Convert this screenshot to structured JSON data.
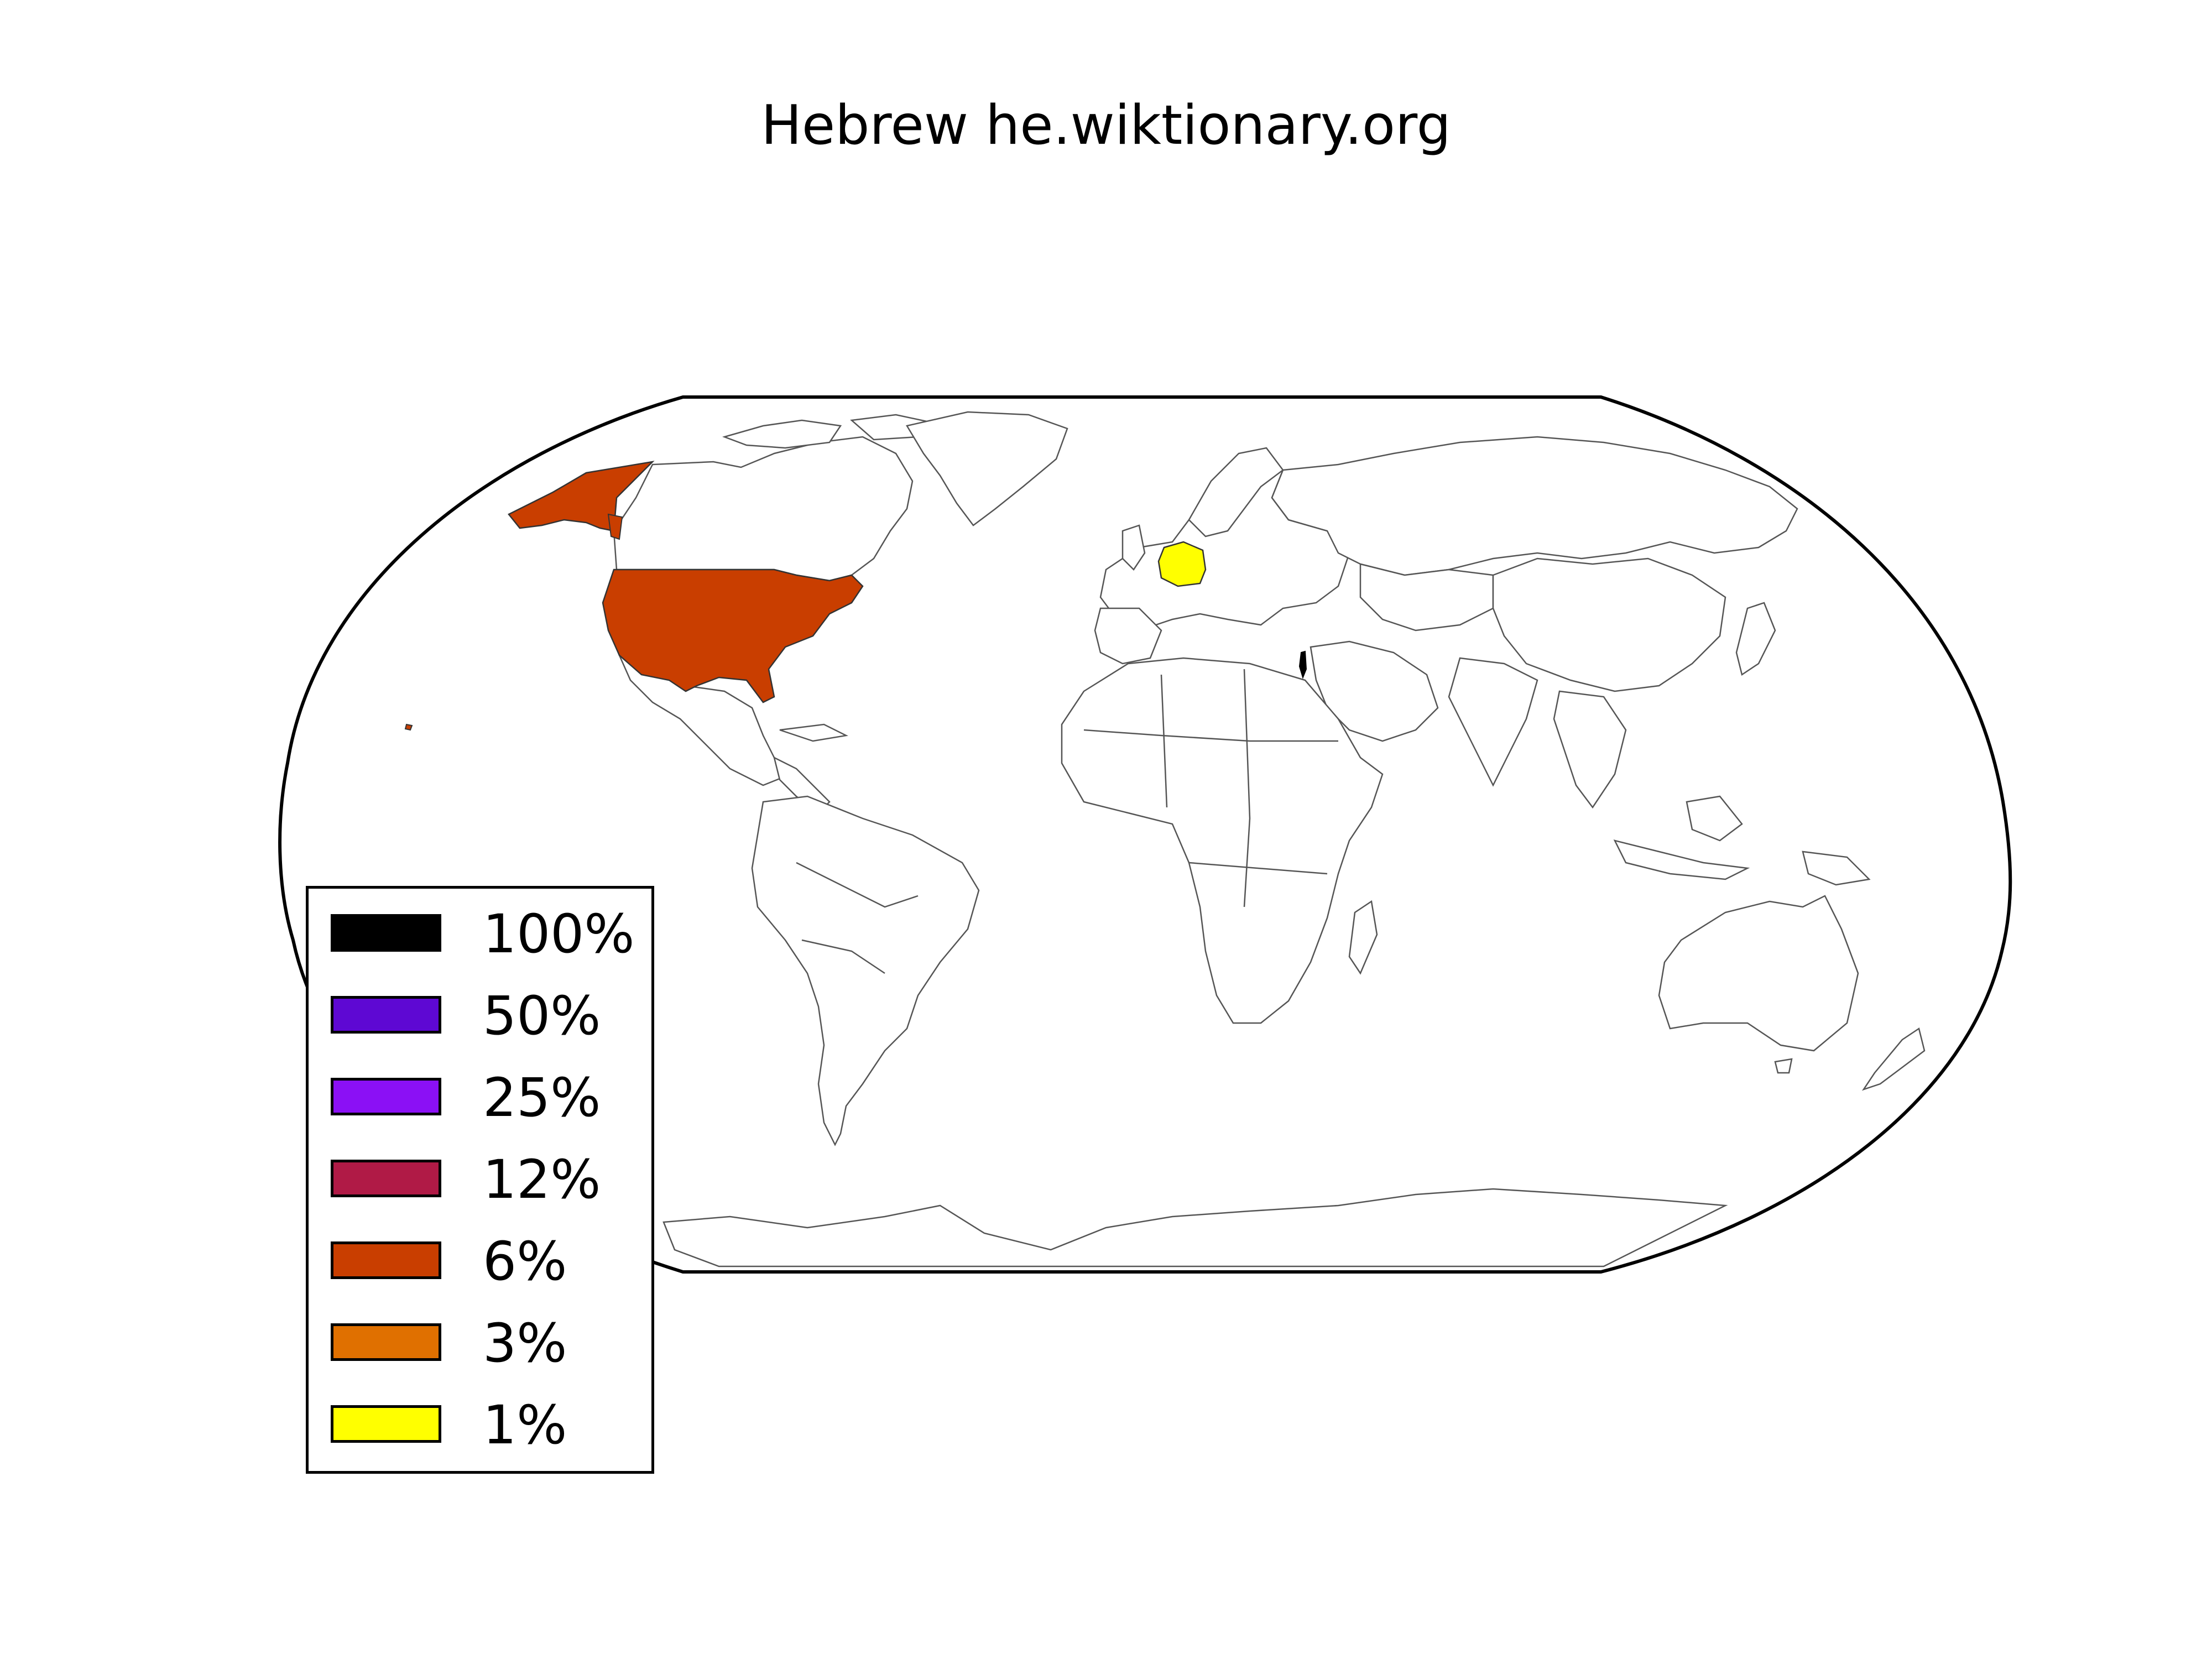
{
  "title": "Hebrew he.wiktionary.org",
  "legend": {
    "items": [
      {
        "label": "100%",
        "color": "#000000"
      },
      {
        "label": "50%",
        "color": "#5e08d3"
      },
      {
        "label": "25%",
        "color": "#8b10f5"
      },
      {
        "label": "12%",
        "color": "#b01a46"
      },
      {
        "label": "6%",
        "color": "#c93e00"
      },
      {
        "label": "3%",
        "color": "#e07000"
      },
      {
        "label": "1%",
        "color": "#ffff00"
      }
    ]
  },
  "regions": [
    {
      "name": "United States",
      "share": "6%",
      "color": "#c93e00"
    },
    {
      "name": "Germany",
      "share": "1%",
      "color": "#ffff00"
    },
    {
      "name": "Israel",
      "share": "100%",
      "color": "#000000"
    }
  ]
}
